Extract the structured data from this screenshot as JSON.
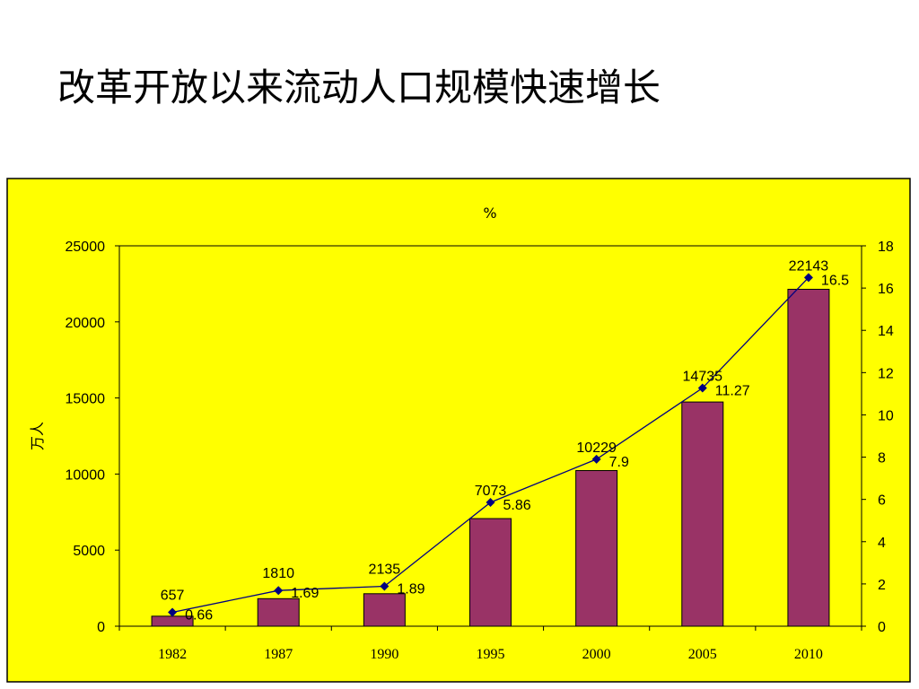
{
  "slide": {
    "title": "改革开放以来流动人口规模快速增长"
  },
  "colors": {
    "panel_background": "#ffff00",
    "bar_fill": "#993366",
    "line": "#000080"
  },
  "chart_data": {
    "type": "bar",
    "categories": [
      "1982",
      "1987",
      "1990",
      "1995",
      "2000",
      "2005",
      "2010"
    ],
    "series": [
      {
        "type": "bar",
        "axis": "left",
        "values": [
          657,
          1810,
          2135,
          7073,
          10229,
          14735,
          22143
        ]
      },
      {
        "type": "line",
        "axis": "right",
        "values": [
          0.66,
          1.69,
          1.89,
          5.86,
          7.9,
          11.27,
          16.5
        ]
      }
    ],
    "ylabel_left": "万人",
    "ylabel_right": "%",
    "ylim_left": [
      0,
      25000
    ],
    "ylim_right": [
      0,
      18
    ],
    "yticks_left": [
      0,
      5000,
      10000,
      15000,
      20000,
      25000
    ],
    "yticks_right": [
      0,
      2,
      4,
      6,
      8,
      10,
      12,
      14,
      16,
      18
    ],
    "grid": false,
    "legend": "none",
    "data_labels": true
  }
}
